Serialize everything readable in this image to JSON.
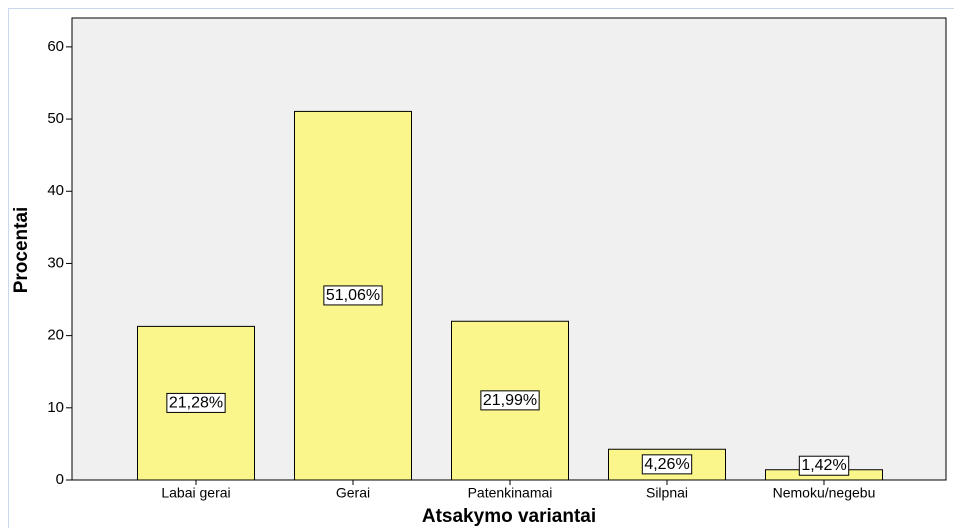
{
  "chart_data": {
    "type": "bar",
    "x_label": "Atsakymo variantai",
    "y_label": "Procentai",
    "categories": [
      "Labai gerai",
      "Gerai",
      "Patenkinamai",
      "Silpnai",
      "Nemoku/negebu"
    ],
    "values": [
      21.28,
      51.06,
      21.99,
      4.26,
      1.42
    ],
    "value_labels": [
      "21,28%",
      "51,06%",
      "21,99%",
      "4,26%",
      "1,42%"
    ],
    "color": "#faf68c",
    "ylim": [
      0,
      64
    ],
    "yticks": [
      0,
      10,
      20,
      30,
      40,
      50,
      60
    ],
    "grid": false
  }
}
